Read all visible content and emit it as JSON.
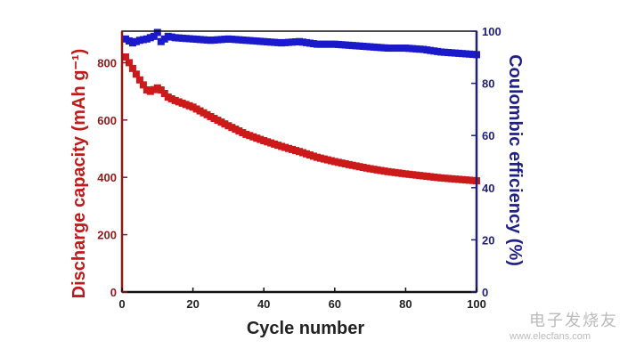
{
  "chart_data": {
    "type": "scatter",
    "title": "",
    "xlabel": "Cycle number",
    "ylabel_left": "Discharge capacity (mAh g⁻¹)",
    "ylabel_right": "Coulombic efficiency (%)",
    "xlim": [
      0,
      100
    ],
    "ylim_left": [
      0,
      910
    ],
    "ylim_right": [
      0,
      100
    ],
    "x_ticks": [
      "0",
      "20",
      "40",
      "60",
      "80",
      "100"
    ],
    "y_ticks_left": [
      "0",
      "200",
      "400",
      "600",
      "800"
    ],
    "y_ticks_right": [
      "0",
      "20",
      "40",
      "60",
      "80",
      "100"
    ],
    "grid": false,
    "legend": "none",
    "series": [
      {
        "axis": "left",
        "color": "#cc1a1a",
        "x": [
          1,
          3,
          5,
          7,
          8,
          10,
          11,
          13,
          15,
          20,
          25,
          30,
          35,
          40,
          45,
          50,
          55,
          60,
          65,
          70,
          75,
          80,
          85,
          90,
          95,
          100
        ],
        "y": [
          820,
          780,
          740,
          705,
          700,
          712,
          705,
          680,
          668,
          645,
          612,
          580,
          550,
          528,
          508,
          490,
          470,
          455,
          442,
          430,
          420,
          412,
          405,
          398,
          393,
          388
        ]
      },
      {
        "axis": "right",
        "color": "#1a1acc",
        "x": [
          1,
          3,
          5,
          7,
          9,
          10,
          11,
          13,
          15,
          20,
          25,
          30,
          35,
          40,
          45,
          50,
          55,
          60,
          65,
          70,
          75,
          80,
          85,
          90,
          95,
          100
        ],
        "y": [
          97,
          95.5,
          96.5,
          97,
          98,
          99.5,
          96,
          98,
          97.5,
          97,
          96.5,
          97,
          96.5,
          96,
          95.5,
          96,
          95,
          95,
          94.5,
          94,
          93.5,
          93.5,
          93,
          92,
          91.5,
          91
        ]
      }
    ],
    "colors": {
      "left_axis": "#8b1a1a",
      "right_axis": "#1f1f7a",
      "frame": "#111111"
    }
  },
  "watermark": {
    "cn": "电子发烧友",
    "url": "www.elecfans.com"
  }
}
